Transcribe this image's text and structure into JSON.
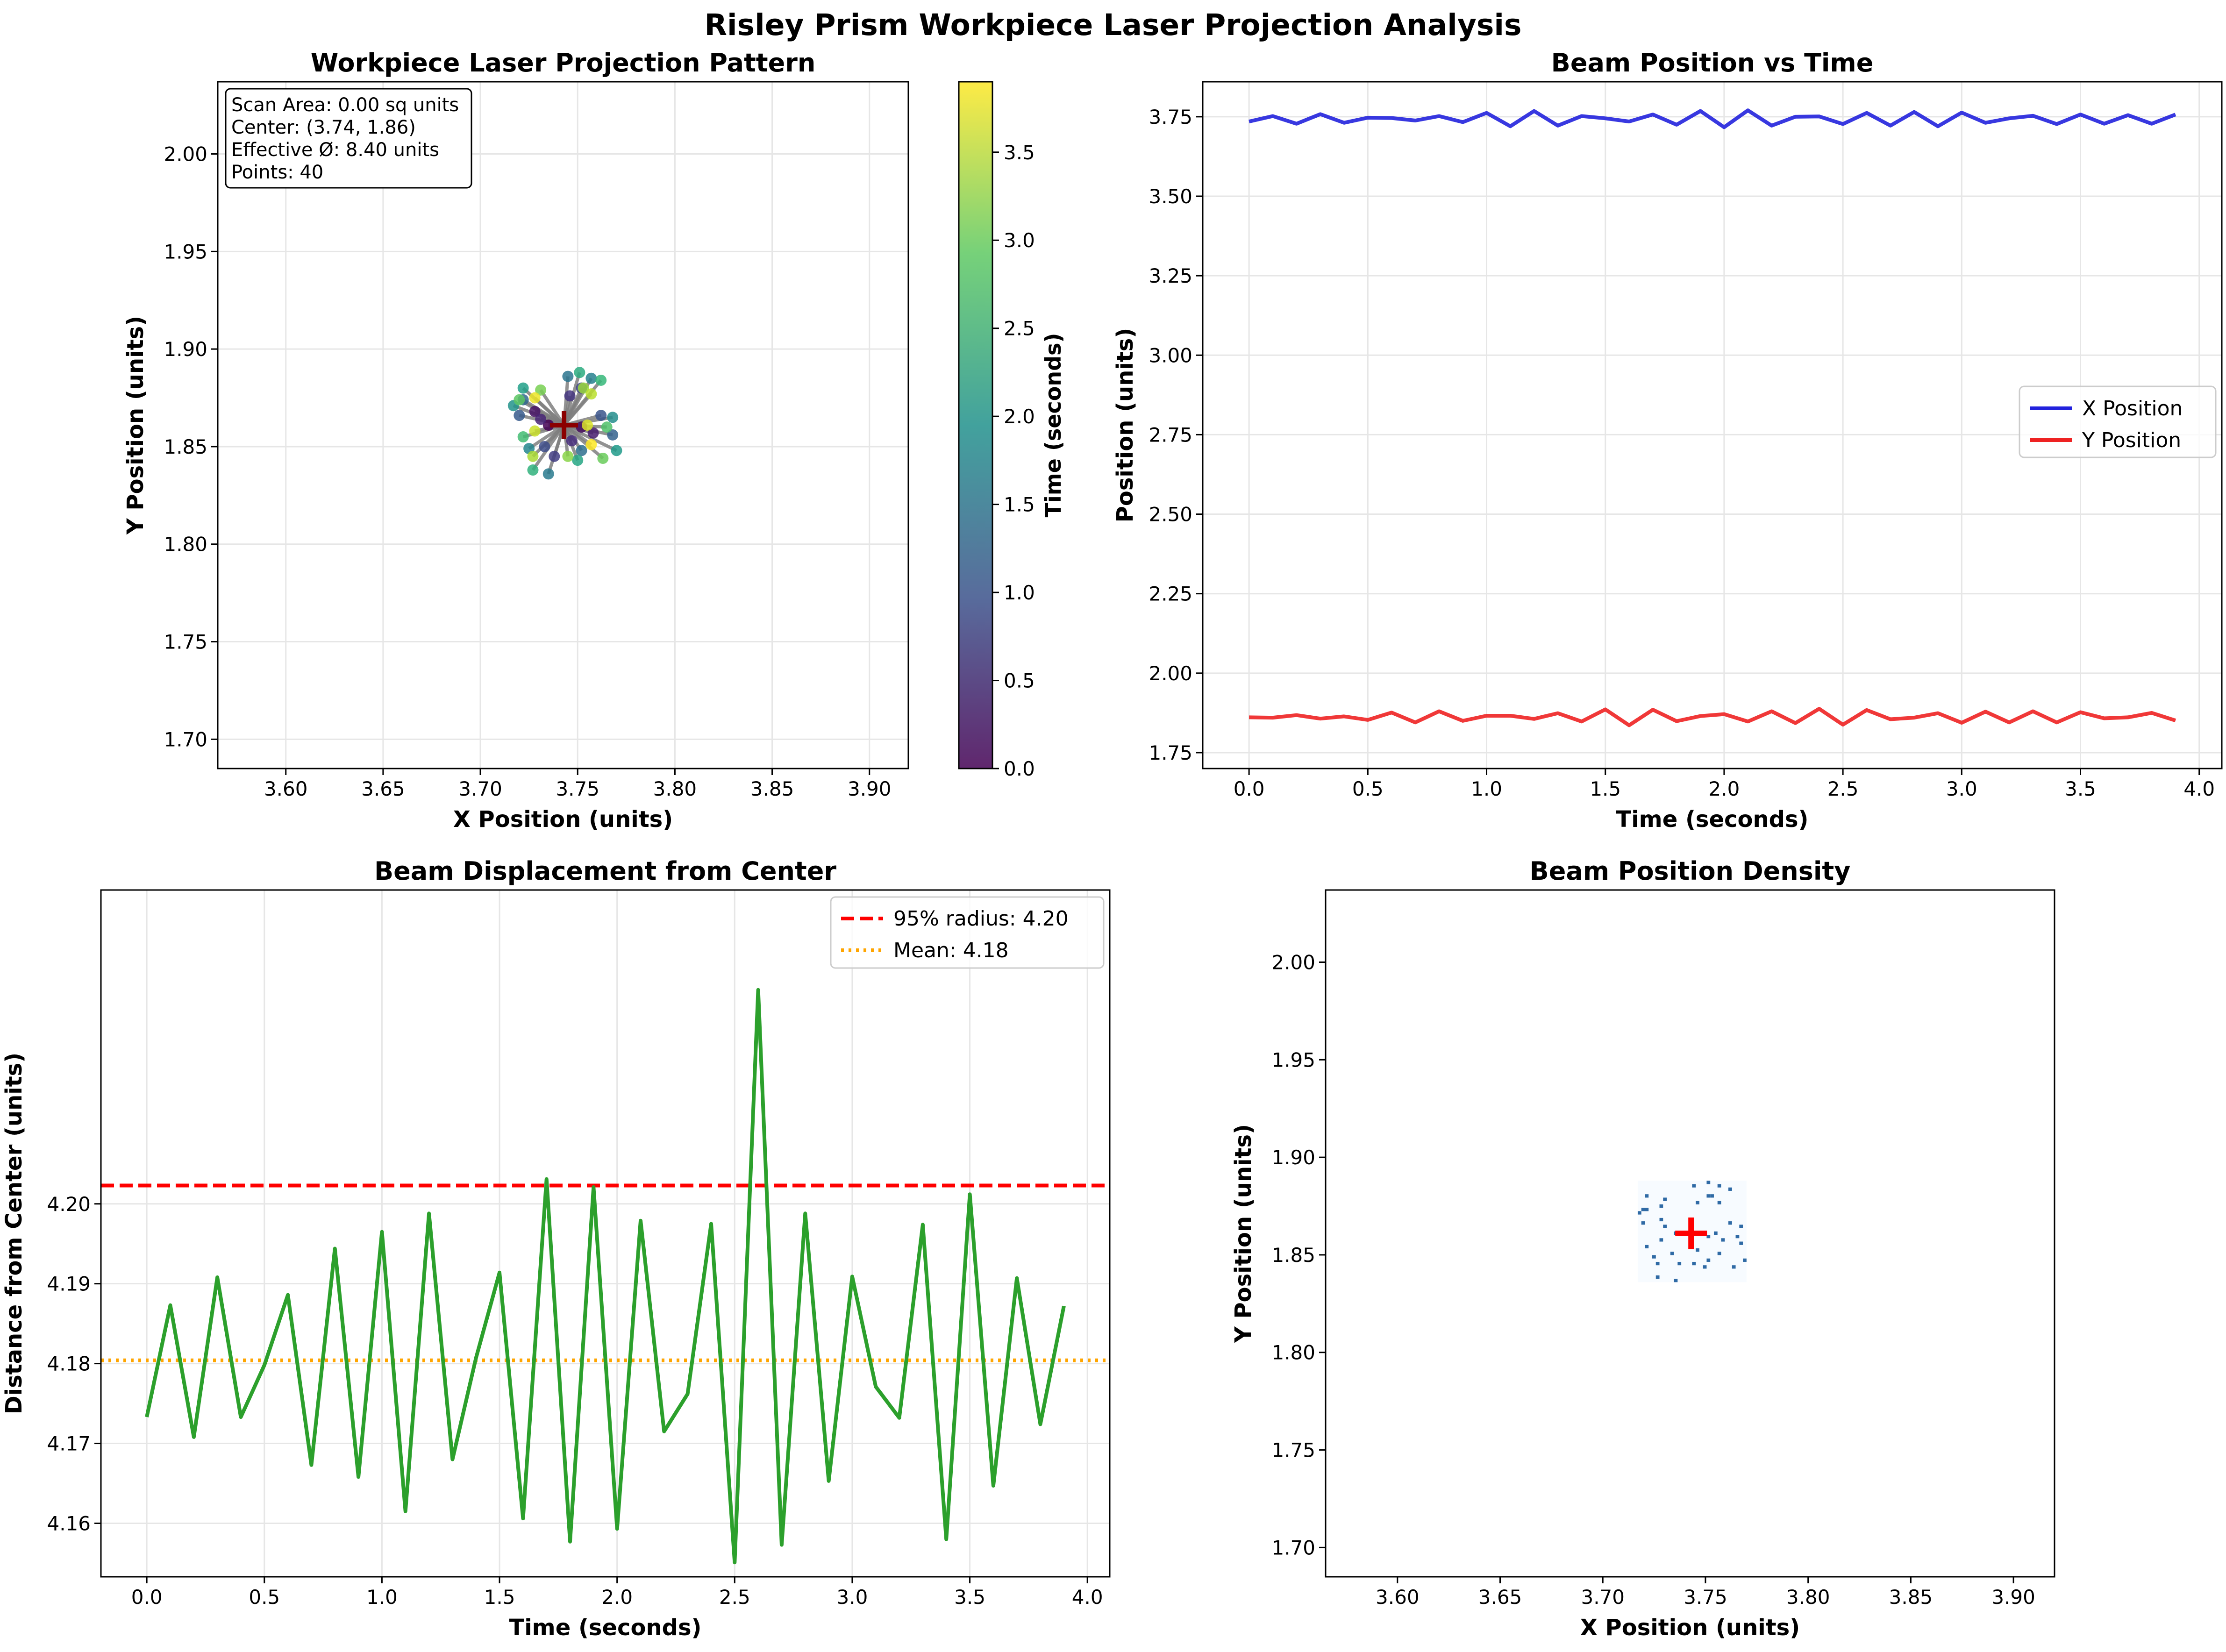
{
  "figure": {
    "suptitle": "Risley Prism Workpiece Laser Projection Analysis"
  },
  "chart_data": [
    {
      "id": "projection",
      "type": "scatter",
      "title": "Workpiece Laser Projection Pattern",
      "xlabel": "X Position (units)",
      "ylabel": "Y Position (units)",
      "xlim": [
        3.565,
        3.92
      ],
      "ylim": [
        1.685,
        2.037
      ],
      "xticks": [
        "3.60",
        "3.65",
        "3.70",
        "3.75",
        "3.80",
        "3.85",
        "3.90"
      ],
      "yticks": [
        "1.70",
        "1.75",
        "1.80",
        "1.85",
        "1.90",
        "1.95",
        "2.00"
      ],
      "grid": true,
      "center_marker": {
        "x": 3.743,
        "y": 1.861,
        "color": "#8b0000"
      },
      "info_box": [
        "Scan Area: 0.00 sq units",
        "Center: (3.74, 1.86)",
        "Effective Ø: 8.40 units",
        "Points: 40"
      ],
      "colorbar": {
        "label": "Time (seconds)",
        "ticks": [
          "0.0",
          "0.5",
          "1.0",
          "1.5",
          "2.0",
          "2.5",
          "3.0",
          "3.5"
        ],
        "range": [
          0,
          3.9
        ],
        "colormap": "viridis"
      },
      "t": [
        0.0,
        0.1,
        0.2,
        0.3,
        0.4,
        0.5,
        0.6,
        0.7,
        0.8,
        0.9,
        1.0,
        1.1,
        1.2,
        1.3,
        1.4,
        1.5,
        1.6,
        1.7,
        1.8,
        1.9,
        2.0,
        2.1,
        2.2,
        2.3,
        2.4,
        2.5,
        2.6,
        2.7,
        2.8,
        2.9,
        3.0,
        3.1,
        3.2,
        3.3,
        3.4,
        3.5,
        3.6,
        3.7,
        3.8,
        3.9
      ],
      "x": [
        3.735,
        3.752,
        3.728,
        3.758,
        3.731,
        3.747,
        3.746,
        3.738,
        3.752,
        3.733,
        3.762,
        3.72,
        3.768,
        3.722,
        3.752,
        3.745,
        3.735,
        3.757,
        3.725,
        3.768,
        3.717,
        3.77,
        3.722,
        3.75,
        3.751,
        3.727,
        3.762,
        3.722,
        3.765,
        3.72,
        3.763,
        3.731,
        3.745,
        3.753,
        3.727,
        3.757,
        3.728,
        3.755,
        3.728,
        3.757
      ],
      "y": [
        1.861,
        1.86,
        1.868,
        1.857,
        1.864,
        1.853,
        1.876,
        1.845,
        1.88,
        1.85,
        1.866,
        1.866,
        1.856,
        1.874,
        1.848,
        1.886,
        1.836,
        1.885,
        1.849,
        1.865,
        1.871,
        1.848,
        1.88,
        1.843,
        1.888,
        1.838,
        1.884,
        1.855,
        1.86,
        1.874,
        1.844,
        1.879,
        1.845,
        1.88,
        1.845,
        1.877,
        1.858,
        1.861,
        1.875,
        1.851
      ]
    },
    {
      "id": "position_time",
      "type": "line",
      "title": "Beam Position vs Time",
      "xlabel": "Time (seconds)",
      "ylabel": "Position (units)",
      "xlim": [
        -0.195,
        4.095
      ],
      "ylim": [
        1.7,
        3.86
      ],
      "xticks": [
        "0.0",
        "0.5",
        "1.0",
        "1.5",
        "2.0",
        "2.5",
        "3.0",
        "3.5",
        "4.0"
      ],
      "yticks": [
        "1.75",
        "2.00",
        "2.25",
        "2.50",
        "2.75",
        "3.00",
        "3.25",
        "3.50",
        "3.75"
      ],
      "grid": true,
      "legend": "right",
      "series": [
        {
          "name": "X Position",
          "color": "#2222dd",
          "ref": "projection.x"
        },
        {
          "name": "Y Position",
          "color": "#ee2222",
          "ref": "projection.y"
        }
      ]
    },
    {
      "id": "displacement",
      "type": "line",
      "title": "Beam Displacement from Center",
      "xlabel": "Time (seconds)",
      "ylabel": "Distance from Center (units)",
      "xlim": [
        -0.195,
        4.095
      ],
      "ylim": [
        4.1533,
        4.2393
      ],
      "xticks": [
        "0.0",
        "0.5",
        "1.0",
        "1.5",
        "2.0",
        "2.5",
        "3.0",
        "3.5",
        "4.0"
      ],
      "yticks": [
        "4.16",
        "4.17",
        "4.18",
        "4.19",
        "4.20"
      ],
      "grid": true,
      "legend": "upper right",
      "values": [
        4.1733,
        4.1873,
        4.1708,
        4.1908,
        4.1733,
        4.1798,
        4.1886,
        4.1673,
        4.1944,
        4.1658,
        4.1965,
        4.1615,
        4.1988,
        4.168,
        4.1807,
        4.1914,
        4.1606,
        4.2031,
        4.1577,
        4.2021,
        4.1593,
        4.1979,
        4.1715,
        4.1762,
        4.1975,
        4.1551,
        4.2268,
        4.1573,
        4.1988,
        4.1653,
        4.1909,
        4.1771,
        4.1732,
        4.1974,
        4.158,
        4.2012,
        4.1647,
        4.1907,
        4.1724,
        4.1872
      ],
      "color": "#2ca02c",
      "hlines": [
        {
          "label": "95% radius: 4.20",
          "y": 4.2023,
          "color": "#ff0000",
          "style": "dashed"
        },
        {
          "label": "Mean: 4.18",
          "y": 4.1804,
          "color": "#ffa500",
          "style": "dotted"
        }
      ]
    },
    {
      "id": "density",
      "type": "heatmap",
      "title": "Beam Position Density",
      "xlabel": "X Position (units)",
      "ylabel": "Y Position (units)",
      "xlim": [
        3.565,
        3.92
      ],
      "ylim": [
        1.685,
        2.037
      ],
      "xticks": [
        "3.60",
        "3.65",
        "3.70",
        "3.75",
        "3.80",
        "3.85",
        "3.90"
      ],
      "yticks": [
        "1.70",
        "1.75",
        "1.80",
        "1.85",
        "1.90",
        "1.95",
        "2.00"
      ],
      "colormap": "Blues",
      "center_marker": {
        "x": 3.743,
        "y": 1.861,
        "color": "#ff0000"
      }
    }
  ]
}
